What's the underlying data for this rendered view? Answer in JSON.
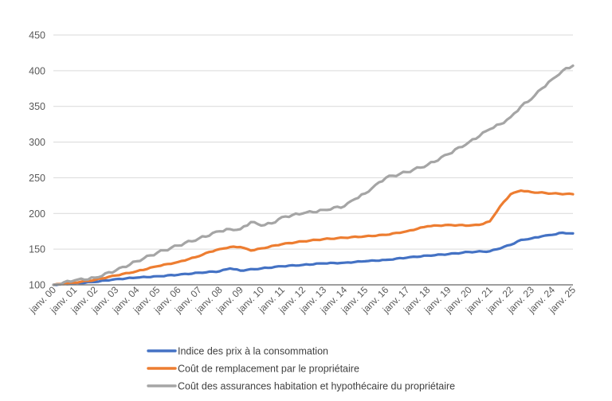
{
  "chart_data": {
    "type": "line",
    "title": "",
    "xlabel": "",
    "ylabel": "",
    "ylim": [
      100,
      450
    ],
    "yticks": [
      100,
      150,
      200,
      250,
      300,
      350,
      400,
      450
    ],
    "x_tick_labels": [
      "janv. 00",
      "janv. 01",
      "janv. 02",
      "janv. 03",
      "janv. 04",
      "janv. 05",
      "janv. 06",
      "janv. 07",
      "janv. 08",
      "janv. 09",
      "janv. 10",
      "janv. 11",
      "janv. 12",
      "janv. 13",
      "janv. 14",
      "janv. 15",
      "janv. 16",
      "janv. 17",
      "janv. 18",
      "janv. 19",
      "janv. 20",
      "janv. 21",
      "janv. 22",
      "janv. 23",
      "janv. 24",
      "janv. 25"
    ],
    "grid": true,
    "legend_position": "bottom",
    "series": [
      {
        "name": "Indice des prix à la consommation",
        "color": "#4472c4",
        "x": [
          "2000-01",
          "2001-01",
          "2002-01",
          "2003-01",
          "2004-01",
          "2005-01",
          "2006-01",
          "2007-01",
          "2008-01",
          "2008-07",
          "2009-01",
          "2010-01",
          "2011-01",
          "2012-01",
          "2013-01",
          "2014-01",
          "2015-01",
          "2016-01",
          "2017-01",
          "2018-01",
          "2019-01",
          "2020-01",
          "2021-01",
          "2022-01",
          "2022-07",
          "2023-01",
          "2023-07",
          "2024-01",
          "2024-07",
          "2025-01"
        ],
        "values": [
          100,
          102,
          104,
          108,
          110,
          112,
          114,
          117,
          119,
          123,
          120,
          123,
          126,
          128,
          130,
          131,
          133,
          135,
          138,
          141,
          143,
          146,
          147,
          156,
          163,
          165,
          168,
          170,
          173,
          172
        ]
      },
      {
        "name": "Coût de remplacement par le propriétaire",
        "color": "#ed7d31",
        "x": [
          "2000-01",
          "2001-01",
          "2002-01",
          "2003-01",
          "2004-01",
          "2005-01",
          "2006-01",
          "2007-01",
          "2007-07",
          "2008-01",
          "2008-07",
          "2009-01",
          "2009-07",
          "2010-01",
          "2011-01",
          "2012-01",
          "2013-01",
          "2014-01",
          "2015-01",
          "2016-01",
          "2017-01",
          "2018-01",
          "2019-01",
          "2020-01",
          "2020-07",
          "2021-01",
          "2021-07",
          "2022-01",
          "2022-07",
          "2023-01",
          "2024-01",
          "2025-01"
        ],
        "values": [
          100,
          103,
          107,
          113,
          119,
          126,
          132,
          140,
          146,
          150,
          153,
          153,
          148,
          151,
          157,
          161,
          164,
          166,
          168,
          170,
          175,
          182,
          184,
          183,
          184,
          189,
          210,
          227,
          232,
          230,
          228,
          227
        ]
      },
      {
        "name": "Coût des assurances habitation et hypothécaire du propriétaire",
        "color": "#a5a5a5",
        "x": [
          "2000-01",
          "2001-01",
          "2002-01",
          "2003-01",
          "2004-01",
          "2005-01",
          "2006-01",
          "2007-01",
          "2008-01",
          "2008-07",
          "2009-01",
          "2009-07",
          "2010-01",
          "2010-07",
          "2011-01",
          "2012-01",
          "2013-01",
          "2014-01",
          "2014-07",
          "2015-01",
          "2015-07",
          "2016-01",
          "2017-01",
          "2018-01",
          "2019-01",
          "2020-01",
          "2021-01",
          "2021-07",
          "2022-01",
          "2022-07",
          "2023-01",
          "2023-07",
          "2024-01",
          "2024-07",
          "2025-01"
        ],
        "values": [
          100,
          106,
          110,
          120,
          133,
          145,
          155,
          165,
          175,
          178,
          178,
          188,
          183,
          186,
          195,
          200,
          205,
          210,
          220,
          228,
          240,
          250,
          258,
          268,
          283,
          300,
          318,
          325,
          335,
          350,
          360,
          375,
          388,
          400,
          407
        ]
      }
    ]
  }
}
